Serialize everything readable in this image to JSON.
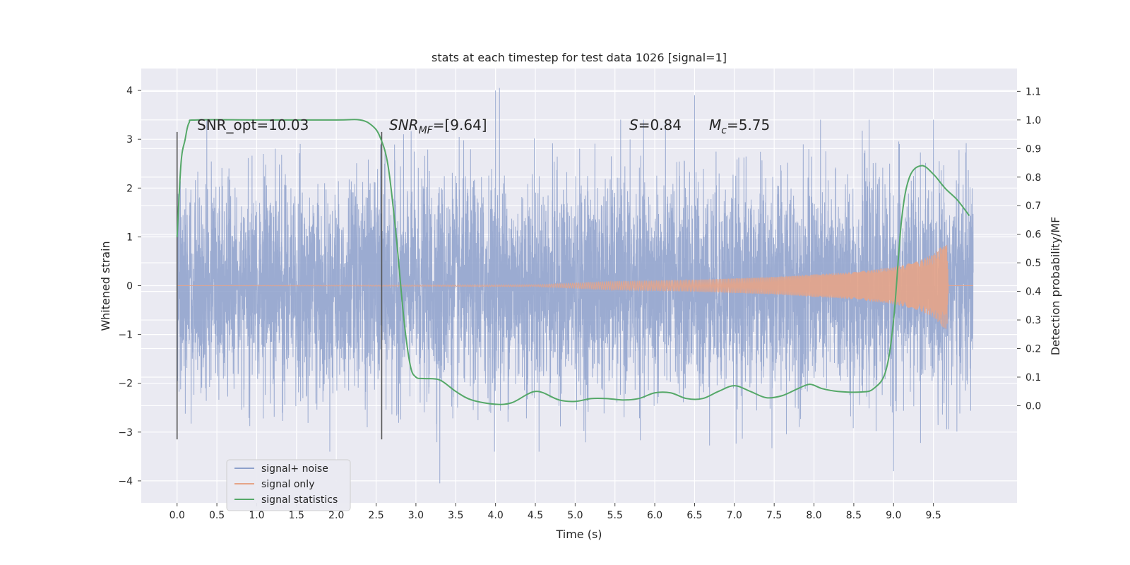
{
  "chart_data": {
    "type": "line",
    "title": "stats at each timestep for test data 1026 [signal=1]",
    "xlabel": "Time (s)",
    "ylabel": "Whitened strain",
    "y2label": "Detection probability/MF",
    "xlim": [
      -0.45,
      10.55
    ],
    "ylim": [
      -4.45,
      4.45
    ],
    "y2lim": [
      -0.34,
      1.18
    ],
    "x_ticks": [
      "0.0",
      "0.5",
      "1.0",
      "1.5",
      "2.0",
      "2.5",
      "3.0",
      "3.5",
      "4.0",
      "4.5",
      "5.0",
      "5.5",
      "6.0",
      "6.5",
      "7.0",
      "7.5",
      "8.0",
      "8.5",
      "9.0",
      "9.5"
    ],
    "y_ticks": [
      "4",
      "3",
      "2",
      "1",
      "0",
      "−1",
      "−2",
      "−3",
      "−4"
    ],
    "y2_ticks": [
      "1.1",
      "1.0",
      "0.9",
      "0.8",
      "0.7",
      "0.6",
      "0.5",
      "0.4",
      "0.3",
      "0.2",
      "0.1",
      "0.0"
    ],
    "grid": true,
    "legend_position": "lower-left",
    "annotations": {
      "snr_opt": "SNR_opt=10.03",
      "snr_mf_sym": "SNR",
      "snr_mf_sub": "MF",
      "snr_mf_val": "=[9.64]",
      "s_sym": "S",
      "s_val": "=0.84",
      "mc_sym": "M",
      "mc_sub": "c",
      "mc_val": "=5.75"
    },
    "vertical_markers": [
      {
        "x": 0.0,
        "y_range": [
          -3.15,
          3.15
        ]
      },
      {
        "x": 2.57,
        "y_range": [
          -3.15,
          3.15
        ]
      }
    ],
    "series": [
      {
        "name": "signal+ noise",
        "color": "#8da0cb",
        "x_range": [
          0.0,
          10.0
        ],
        "typical_amplitude": 1.3,
        "extremes": [
          {
            "x": 4.0,
            "y": 4.0
          },
          {
            "x": 4.05,
            "y": 4.05
          },
          {
            "x": 6.5,
            "y": 3.9
          },
          {
            "x": 3.3,
            "y": -4.05
          },
          {
            "x": 9.0,
            "y": -3.8
          }
        ]
      },
      {
        "name": "signal only",
        "color": "#e5a488",
        "envelope": [
          {
            "x": 0.0,
            "a": 0.0
          },
          {
            "x": 4.5,
            "a": 0.02
          },
          {
            "x": 5.5,
            "a": 0.09
          },
          {
            "x": 6.5,
            "a": 0.12
          },
          {
            "x": 7.5,
            "a": 0.18
          },
          {
            "x": 8.5,
            "a": 0.28
          },
          {
            "x": 9.0,
            "a": 0.38
          },
          {
            "x": 9.3,
            "a": 0.5
          },
          {
            "x": 9.5,
            "a": 0.65
          },
          {
            "x": 9.62,
            "a": 0.85
          },
          {
            "x": 9.67,
            "a": 0.9
          },
          {
            "x": 9.69,
            "a": 0.0
          }
        ]
      },
      {
        "name": "signal statistics",
        "color": "#55a868",
        "axis": "right",
        "points": [
          {
            "x": 0.0,
            "y": 0.59
          },
          {
            "x": 0.05,
            "y": 0.85
          },
          {
            "x": 0.1,
            "y": 0.93
          },
          {
            "x": 0.15,
            "y": 0.99
          },
          {
            "x": 0.25,
            "y": 1.0
          },
          {
            "x": 1.0,
            "y": 1.0
          },
          {
            "x": 2.0,
            "y": 1.0
          },
          {
            "x": 2.3,
            "y": 1.0
          },
          {
            "x": 2.45,
            "y": 0.98
          },
          {
            "x": 2.55,
            "y": 0.94
          },
          {
            "x": 2.65,
            "y": 0.84
          },
          {
            "x": 2.75,
            "y": 0.6
          },
          {
            "x": 2.85,
            "y": 0.3
          },
          {
            "x": 2.93,
            "y": 0.14
          },
          {
            "x": 3.0,
            "y": 0.1
          },
          {
            "x": 3.1,
            "y": 0.095
          },
          {
            "x": 3.3,
            "y": 0.09
          },
          {
            "x": 3.5,
            "y": 0.05
          },
          {
            "x": 3.7,
            "y": 0.02
          },
          {
            "x": 4.0,
            "y": 0.005
          },
          {
            "x": 4.2,
            "y": 0.01
          },
          {
            "x": 4.4,
            "y": 0.04
          },
          {
            "x": 4.5,
            "y": 0.05
          },
          {
            "x": 4.6,
            "y": 0.045
          },
          {
            "x": 4.8,
            "y": 0.02
          },
          {
            "x": 5.0,
            "y": 0.015
          },
          {
            "x": 5.2,
            "y": 0.025
          },
          {
            "x": 5.4,
            "y": 0.025
          },
          {
            "x": 5.6,
            "y": 0.02
          },
          {
            "x": 5.8,
            "y": 0.025
          },
          {
            "x": 6.0,
            "y": 0.045
          },
          {
            "x": 6.2,
            "y": 0.045
          },
          {
            "x": 6.4,
            "y": 0.025
          },
          {
            "x": 6.6,
            "y": 0.025
          },
          {
            "x": 6.8,
            "y": 0.05
          },
          {
            "x": 7.0,
            "y": 0.07
          },
          {
            "x": 7.2,
            "y": 0.05
          },
          {
            "x": 7.4,
            "y": 0.028
          },
          {
            "x": 7.6,
            "y": 0.035
          },
          {
            "x": 7.8,
            "y": 0.06
          },
          {
            "x": 7.95,
            "y": 0.075
          },
          {
            "x": 8.1,
            "y": 0.06
          },
          {
            "x": 8.3,
            "y": 0.05
          },
          {
            "x": 8.6,
            "y": 0.048
          },
          {
            "x": 8.75,
            "y": 0.06
          },
          {
            "x": 8.9,
            "y": 0.12
          },
          {
            "x": 9.0,
            "y": 0.3
          },
          {
            "x": 9.1,
            "y": 0.65
          },
          {
            "x": 9.2,
            "y": 0.8
          },
          {
            "x": 9.35,
            "y": 0.84
          },
          {
            "x": 9.5,
            "y": 0.81
          },
          {
            "x": 9.65,
            "y": 0.76
          },
          {
            "x": 9.8,
            "y": 0.72
          },
          {
            "x": 9.95,
            "y": 0.665
          }
        ]
      }
    ]
  }
}
